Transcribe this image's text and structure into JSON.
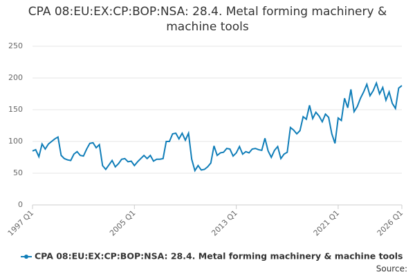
{
  "chart_data": {
    "type": "line",
    "title": "CPA 08:EU:EX:CP:BOP:NSA: 28.4. Metal forming machinery & machine tools",
    "source": "Source:",
    "categories": [
      "1997 Q1",
      null,
      null,
      null,
      null,
      null,
      null,
      null,
      null,
      null,
      null,
      null,
      null,
      null,
      null,
      null,
      null,
      null,
      null,
      null,
      null,
      null,
      null,
      null,
      null,
      null,
      null,
      null,
      null,
      null,
      null,
      null,
      "2005 Q1",
      null,
      null,
      null,
      null,
      null,
      null,
      null,
      null,
      null,
      null,
      null,
      null,
      null,
      null,
      null,
      null,
      null,
      null,
      null,
      null,
      null,
      null,
      null,
      null,
      null,
      null,
      null,
      null,
      null,
      null,
      null,
      "2013 Q1",
      null,
      null,
      null,
      null,
      null,
      null,
      null,
      null,
      null,
      null,
      null,
      null,
      null,
      null,
      null,
      null,
      null,
      null,
      null,
      null,
      null,
      null,
      null,
      null,
      null,
      null,
      null,
      null,
      null,
      null,
      null,
      "2021 Q1",
      null,
      null,
      null,
      null,
      null,
      null,
      null,
      null,
      null,
      null,
      null,
      null,
      null,
      null,
      null,
      null,
      null,
      null,
      null,
      "2026 Q1"
    ],
    "series": [
      {
        "name": "CPA 08:EU:EX:CP:BOP:NSA: 28.4. Metal forming machinery & machine tools",
        "color": "#0f7db8",
        "values": [
          85,
          87,
          76,
          96,
          88,
          96,
          100,
          104,
          107,
          78,
          73,
          71,
          70,
          80,
          84,
          78,
          77,
          88,
          97,
          98,
          90,
          95,
          62,
          56,
          63,
          70,
          60,
          65,
          72,
          73,
          68,
          69,
          62,
          68,
          73,
          78,
          73,
          78,
          69,
          72,
          72,
          73,
          100,
          100,
          112,
          113,
          104,
          113,
          102,
          113,
          72,
          54,
          62,
          55,
          56,
          60,
          66,
          93,
          78,
          82,
          83,
          89,
          88,
          77,
          82,
          92,
          80,
          84,
          82,
          88,
          89,
          87,
          86,
          105,
          85,
          75,
          86,
          92,
          73,
          80,
          83,
          122,
          118,
          112,
          117,
          139,
          135,
          157,
          136,
          146,
          140,
          131,
          143,
          138,
          112,
          97,
          137,
          133,
          168,
          153,
          182,
          147,
          155,
          168,
          178,
          190,
          172,
          180,
          192,
          175,
          185,
          165,
          178,
          160,
          152,
          184,
          188
        ]
      }
    ],
    "ylim": [
      0,
      250
    ],
    "yticks": [
      0,
      50,
      100,
      150,
      200,
      250
    ],
    "grid": true,
    "legend": "bottom"
  }
}
